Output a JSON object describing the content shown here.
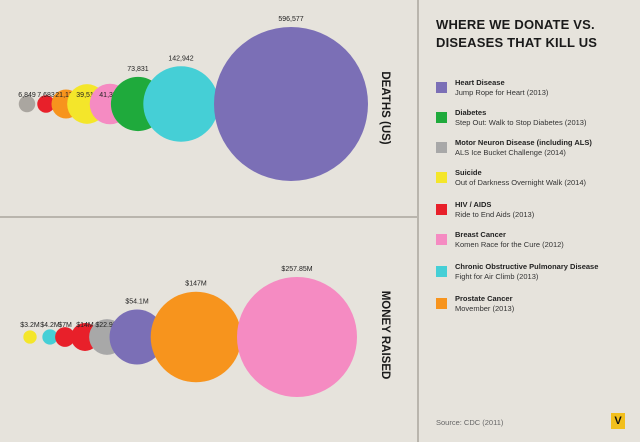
{
  "legend": {
    "title_line1": "WHERE WE DONATE VS.",
    "title_line2": "DISEASES THAT KILL US",
    "items": [
      {
        "name": "Heart Disease",
        "event": "Jump Rope for Heart (2013)",
        "color": "#7b6fb6"
      },
      {
        "name": "Diabetes",
        "event": "Step Out: Walk to Stop Diabetes (2013)",
        "color": "#1faa3c"
      },
      {
        "name": "Motor Neuron Disease (including ALS)",
        "event": "ALS Ice Bucket Challenge (2014)",
        "color": "#a8a8a8"
      },
      {
        "name": "Suicide",
        "event": "Out of Darkness Overnight Walk (2014)",
        "color": "#f4e62a"
      },
      {
        "name": "HIV / AIDS",
        "event": "Ride to End Aids (2013)",
        "color": "#e8202a"
      },
      {
        "name": "Breast Cancer",
        "event": "Komen Race for the Cure (2012)",
        "color": "#f58bc2"
      },
      {
        "name": "Chronic Obstructive Pulmonary Disease",
        "event": "Fight for Air Climb (2013)",
        "color": "#45cfd6"
      },
      {
        "name": "Prostate Cancer",
        "event": "Movember (2013)",
        "color": "#f7941d"
      }
    ]
  },
  "source": "Source: CDC (2011)",
  "logo": "V",
  "chart_data": [
    {
      "type": "bubble",
      "title": "DEATHS (US)",
      "categories": [
        "HIV / AIDS",
        "Suicide",
        "Prostate Cancer",
        "Motor Neuron Disease (including ALS)",
        "Breast Cancer",
        "Diabetes",
        "Chronic Obstructive Pulmonary Disease",
        "Heart Disease"
      ],
      "values": [
        6849,
        7683,
        21176,
        39518,
        41374,
        73831,
        142942,
        596577
      ],
      "labels": [
        "6,849",
        "7,683",
        "21,176",
        "39,518",
        "41,374",
        "73,831",
        "142,942",
        "596,577"
      ],
      "colors": [
        "#aaa6a0",
        "#e8202a",
        "#f7941d",
        "#f4e62a",
        "#f58bc2",
        "#1faa3c",
        "#45cfd6",
        "#7b6fb6"
      ]
    },
    {
      "type": "bubble",
      "title": "MONEY RAISED",
      "categories": [
        "Suicide",
        "Chronic Obstructive Pulmonary Disease",
        "HIV / AIDS",
        "Diabetes",
        "Motor Neuron Disease (including ALS)",
        "Heart Disease",
        "Prostate Cancer",
        "Breast Cancer"
      ],
      "values": [
        3.2,
        4.2,
        7,
        14,
        22.9,
        54.1,
        147,
        257.85
      ],
      "unit": "$M",
      "labels": [
        "$3.2M",
        "$4.2M",
        "$7M",
        "$14M",
        "$22.9M",
        "$54.1M",
        "$147M",
        "$257.85M"
      ],
      "colors": [
        "#f4e62a",
        "#45cfd6",
        "#e8202a",
        "#e8202a",
        "#a8a8a8",
        "#7b6fb6",
        "#f7941d",
        "#f58bc2"
      ]
    }
  ]
}
